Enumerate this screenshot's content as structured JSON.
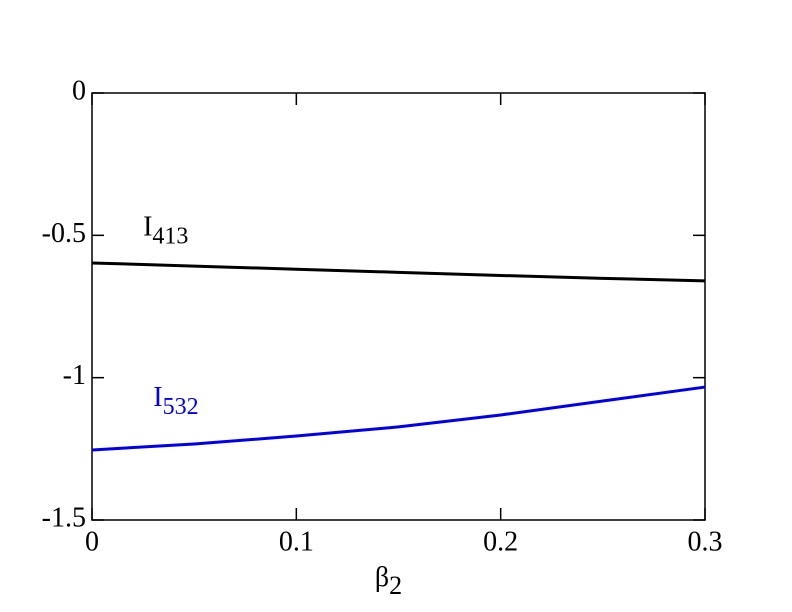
{
  "chart_data": {
    "type": "line",
    "xlabel": {
      "text": "β",
      "subscript": "2"
    },
    "x": [
      0,
      0.05,
      0.1,
      0.15,
      0.2,
      0.25,
      0.3
    ],
    "series": [
      {
        "color": "#000000",
        "values": [
          -0.597,
          -0.608,
          -0.619,
          -0.63,
          -0.641,
          -0.651,
          -0.66
        ]
      },
      {
        "color": "#0000ee",
        "values": [
          -1.254,
          -1.233,
          -1.205,
          -1.173,
          -1.131,
          -1.082,
          -1.033
        ]
      }
    ],
    "annotations": [
      {
        "text": "I",
        "subscript": "413",
        "color": "#000000",
        "x": 0.025,
        "y": -0.5
      },
      {
        "text": "I",
        "subscript": "532",
        "color": "#0000ee",
        "x": 0.03,
        "y": -1.1
      }
    ],
    "xlim": [
      0,
      0.3
    ],
    "ylim": [
      -1.5,
      0
    ],
    "xticks": [
      0,
      0.1,
      0.2,
      0.3
    ],
    "yticks": [
      0,
      -0.5,
      -1,
      -1.5
    ]
  }
}
